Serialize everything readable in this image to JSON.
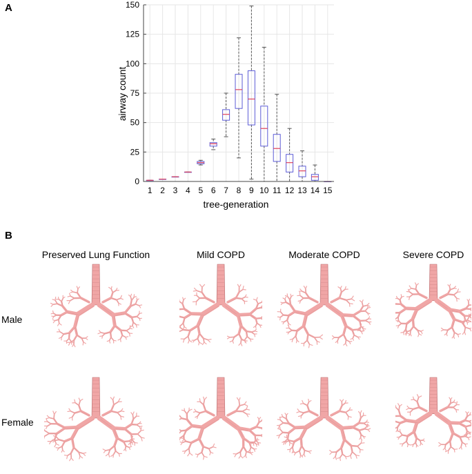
{
  "panel_labels": {
    "a": "A",
    "b": "B"
  },
  "chart_data": {
    "type": "box",
    "xlabel": "tree-generation",
    "ylabel": "airway count",
    "ylim": [
      0,
      150
    ],
    "yticks": [
      0,
      25,
      50,
      75,
      100,
      125,
      150
    ],
    "grid": true,
    "categories": [
      "1",
      "2",
      "3",
      "4",
      "5",
      "6",
      "7",
      "8",
      "9",
      "10",
      "11",
      "12",
      "13",
      "14",
      "15"
    ],
    "boxes": [
      {
        "min": 1,
        "q1": 1,
        "median": 1,
        "q3": 1,
        "max": 1
      },
      {
        "min": 2,
        "q1": 2,
        "median": 2,
        "q3": 2,
        "max": 2
      },
      {
        "min": 4,
        "q1": 4,
        "median": 4,
        "q3": 4,
        "max": 4
      },
      {
        "min": 8,
        "q1": 8,
        "median": 8,
        "q3": 8,
        "max": 8
      },
      {
        "min": 14,
        "q1": 15,
        "median": 16,
        "q3": 17,
        "max": 18
      },
      {
        "min": 27,
        "q1": 30,
        "median": 32,
        "q3": 33,
        "max": 36
      },
      {
        "min": 38,
        "q1": 52,
        "median": 57,
        "q3": 61,
        "max": 75
      },
      {
        "min": 20,
        "q1": 62,
        "median": 78,
        "q3": 91,
        "max": 122
      },
      {
        "min": 2,
        "q1": 48,
        "median": 70,
        "q3": 94,
        "max": 149
      },
      {
        "min": 0,
        "q1": 30,
        "median": 45,
        "q3": 64,
        "max": 114
      },
      {
        "min": 0,
        "q1": 17,
        "median": 28,
        "q3": 40,
        "max": 74
      },
      {
        "min": 0,
        "q1": 8,
        "median": 16,
        "q3": 23,
        "max": 45
      },
      {
        "min": 0,
        "q1": 4,
        "median": 9,
        "q3": 13,
        "max": 26
      },
      {
        "min": 0,
        "q1": 1,
        "median": 4,
        "q3": 6,
        "max": 14
      },
      {
        "min": 0,
        "q1": 0,
        "median": 0,
        "q3": 0,
        "max": 0
      }
    ],
    "box_color": "#5b5bd6",
    "median_color": "#e0405a",
    "whisker_color": "#555555"
  },
  "columns": [
    "Preserved Lung Function",
    "Mild COPD",
    "Moderate COPD",
    "Severe COPD"
  ],
  "rows": [
    "Male",
    "Female"
  ],
  "lung_color": "#f0a6a6",
  "lung_shadow": "#b86b6e"
}
